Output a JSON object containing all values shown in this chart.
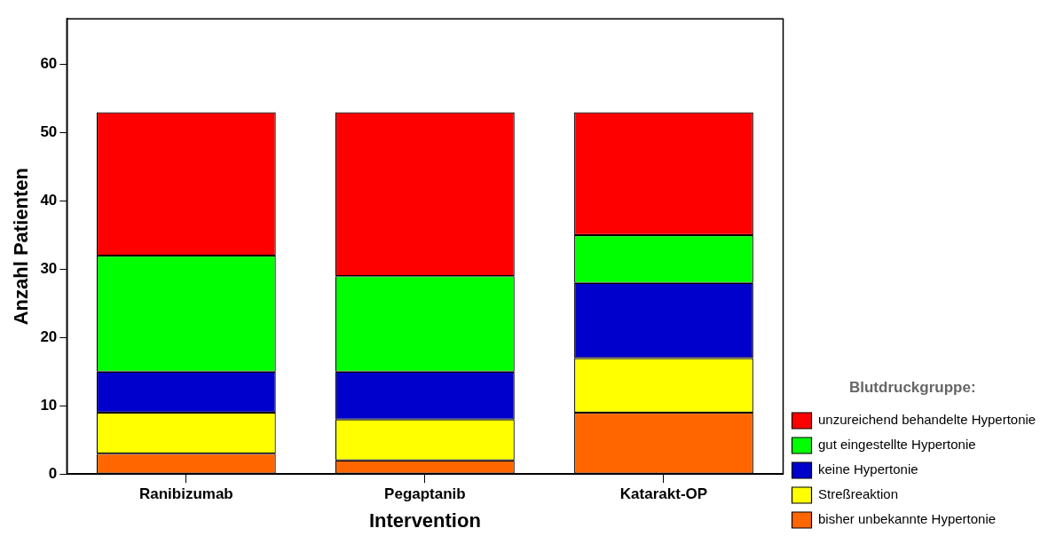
{
  "chart_data": {
    "type": "bar",
    "xlabel": "Intervention",
    "ylabel": "Anzahl Patienten",
    "legend_title": "Blutdruckgruppe:",
    "categories": [
      "Ranibizumab",
      "Pegaptanib",
      "Katarakt-OP"
    ],
    "stacked": true,
    "ylim": [
      0,
      66.7
    ],
    "yticks": [
      0,
      10,
      20,
      30,
      40,
      50,
      60
    ],
    "grid": false,
    "legend": "bottom right",
    "series": [
      {
        "name": "bisher unbekannte Hypertonie",
        "color": "#ff6600",
        "values": [
          3,
          2,
          9
        ]
      },
      {
        "name": "Streßreaktion",
        "color": "#ffff00",
        "values": [
          6,
          6,
          8
        ]
      },
      {
        "name": "keine Hypertonie",
        "color": "#0000cc",
        "values": [
          6,
          7,
          11
        ]
      },
      {
        "name": "gut eingestellte Hypertonie",
        "color": "#00ff00",
        "values": [
          17,
          14,
          7
        ]
      },
      {
        "name": "unzureichend behandelte Hypertonie",
        "color": "#ff0000",
        "values": [
          21,
          24,
          18
        ]
      }
    ]
  }
}
